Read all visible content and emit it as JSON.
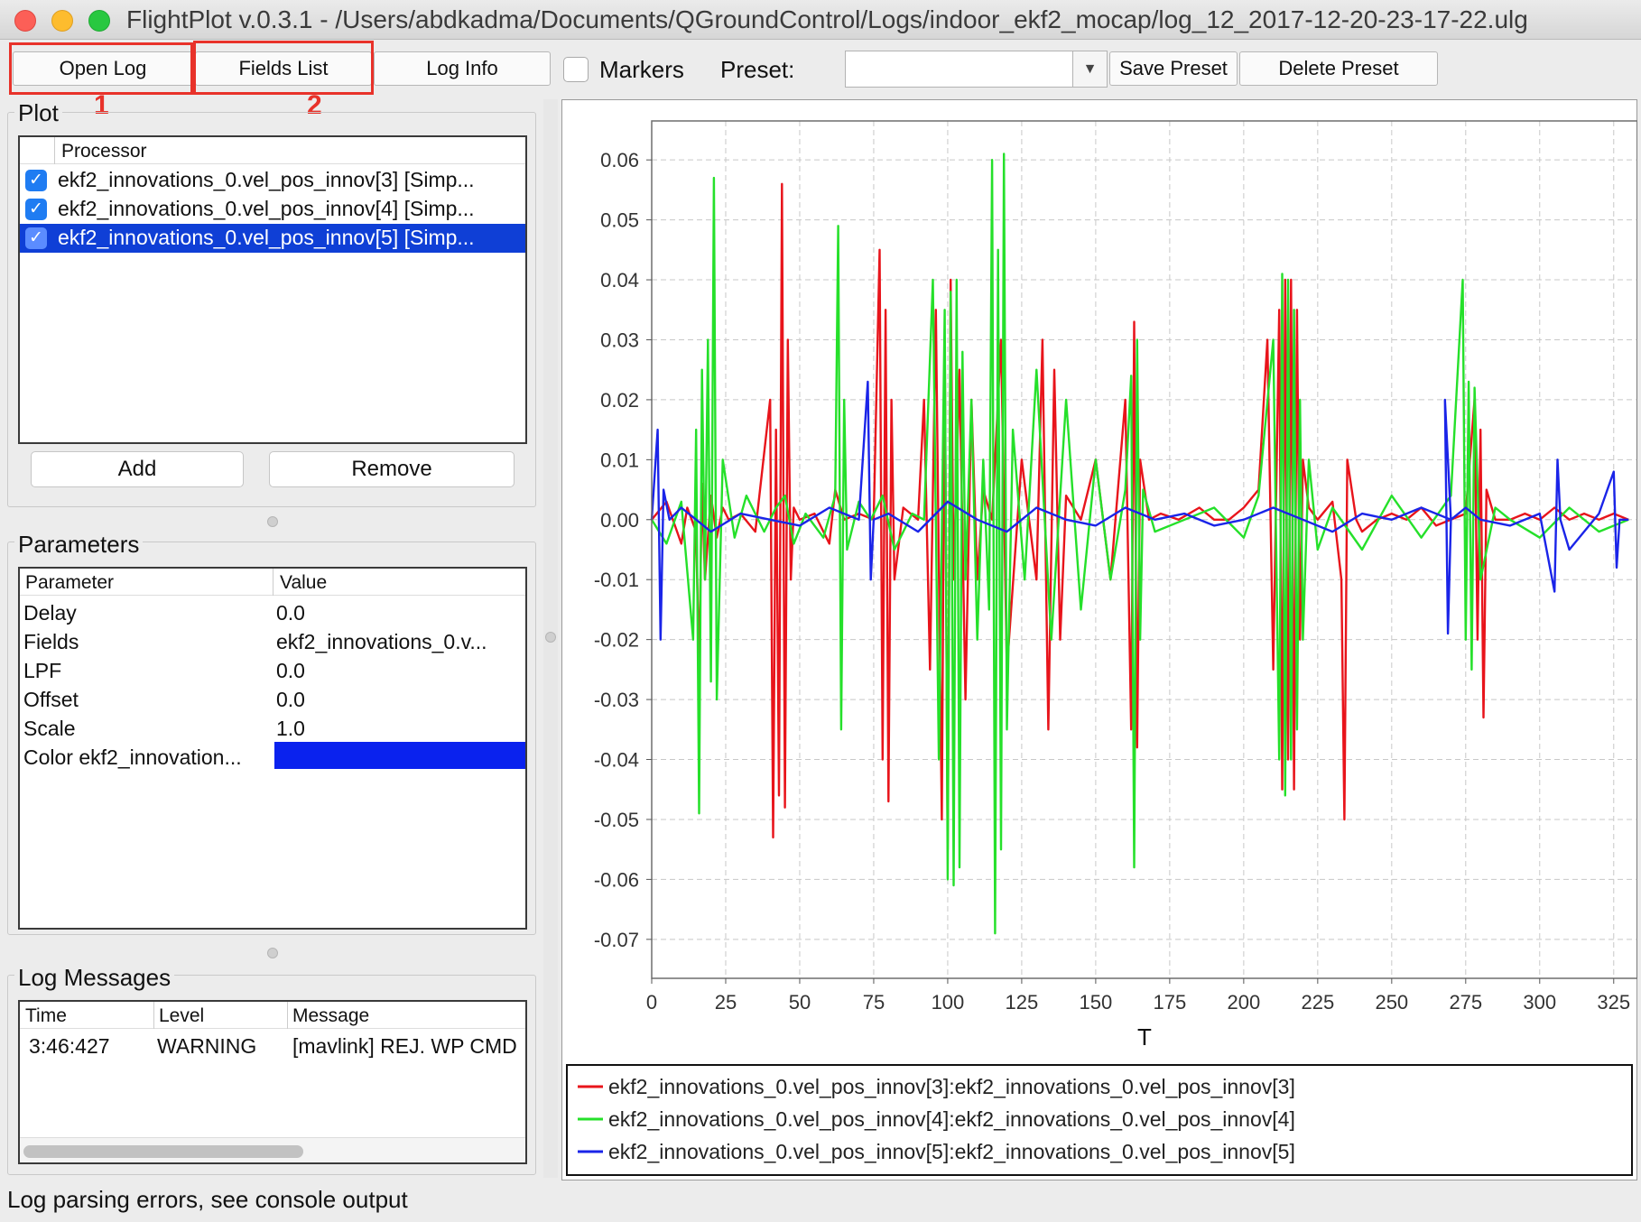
{
  "window": {
    "title": "FlightPlot v.0.3.1 - /Users/abdkadma/Documents/QGroundControl/Logs/indoor_ekf2_mocap/log_12_2017-12-20-23-17-22.ulg"
  },
  "toolbar": {
    "open_log": "Open Log",
    "fields_list": "Fields List",
    "log_info": "Log Info",
    "markers_label": "Markers",
    "markers_checked": false,
    "preset_label": "Preset:",
    "preset_value": "",
    "save_preset": "Save Preset",
    "delete_preset": "Delete Preset"
  },
  "annotations": {
    "box1": "1",
    "box2": "2",
    "color": "#e8322a"
  },
  "plot_panel": {
    "title": "Plot",
    "column_header": "Processor",
    "processors": [
      {
        "label": "ekf2_innovations_0.vel_pos_innov[3] [Simp...",
        "checked": true,
        "selected": false
      },
      {
        "label": "ekf2_innovations_0.vel_pos_innov[4] [Simp...",
        "checked": true,
        "selected": false
      },
      {
        "label": "ekf2_innovations_0.vel_pos_innov[5] [Simp...",
        "checked": true,
        "selected": true
      }
    ],
    "add": "Add",
    "remove": "Remove"
  },
  "parameters_panel": {
    "title": "Parameters",
    "col_param": "Parameter",
    "col_value": "Value",
    "rows": [
      {
        "name": "Delay",
        "value": "0.0"
      },
      {
        "name": "Fields",
        "value": "ekf2_innovations_0.v..."
      },
      {
        "name": "LPF",
        "value": "0.0"
      },
      {
        "name": "Offset",
        "value": "0.0"
      },
      {
        "name": "Scale",
        "value": "1.0"
      },
      {
        "name": "Color ekf2_innovation...",
        "value": ""
      }
    ],
    "color_swatch": "#0a22ee"
  },
  "log_messages": {
    "title": "Log Messages",
    "col_time": "Time",
    "col_level": "Level",
    "col_message": "Message",
    "rows": [
      {
        "time": "3:46:427",
        "level": "WARNING",
        "message": "[mavlink] REJ. WP CMD"
      }
    ]
  },
  "status_bar": {
    "text": "Log parsing errors, see console output"
  },
  "chart_data": {
    "type": "line",
    "xlabel": "T",
    "ylabel": "",
    "xlim": [
      0,
      333
    ],
    "ylim": [
      -0.0765,
      0.0665
    ],
    "x_ticks": [
      0,
      25,
      50,
      75,
      100,
      125,
      150,
      175,
      200,
      225,
      250,
      275,
      300,
      325
    ],
    "y_ticks": [
      0.06,
      0.05,
      0.04,
      0.03,
      0.02,
      0.01,
      0.0,
      -0.01,
      -0.02,
      -0.03,
      -0.04,
      -0.05,
      -0.06,
      -0.07
    ],
    "y_tick_labels": [
      "0.06",
      "0.05",
      "0.04",
      "0.03",
      "0.02",
      "0.01",
      "0.00",
      "-0.01",
      "-0.02",
      "-0.03",
      "-0.04",
      "-0.05",
      "-0.06",
      "-0.07"
    ],
    "grid": true,
    "legend_position": "bottom",
    "series": [
      {
        "name": "ekf2_innovations_0.vel_pos_innov[3]:ekf2_innovations_0.vel_pos_innov[3]",
        "color": "#e8141b",
        "x": [
          0,
          5,
          10,
          12,
          15,
          16,
          17,
          18,
          20,
          22,
          24,
          26,
          30,
          35,
          40,
          41,
          42,
          43,
          44,
          45,
          46,
          47,
          48,
          50,
          55,
          60,
          62,
          65,
          70,
          75,
          77,
          78,
          79,
          80,
          81,
          82,
          85,
          90,
          92,
          94,
          96,
          98,
          99,
          100,
          101,
          102,
          104,
          106,
          108,
          110,
          112,
          115,
          118,
          120,
          125,
          130,
          132,
          134,
          136,
          138,
          140,
          145,
          150,
          155,
          160,
          162,
          163,
          164,
          165,
          168,
          172,
          178,
          185,
          190,
          195,
          200,
          205,
          208,
          210,
          212,
          213,
          214,
          215,
          216,
          217,
          218,
          219,
          220,
          222,
          225,
          230,
          233,
          234,
          235,
          238,
          240,
          245,
          250,
          255,
          260,
          265,
          270,
          275,
          278,
          279,
          280,
          281,
          282,
          285,
          290,
          295,
          300,
          305,
          310,
          315,
          320,
          325,
          330
        ],
        "y": [
          0.0,
          0.003,
          -0.004,
          0.002,
          -0.002,
          -0.025,
          0.006,
          -0.01,
          0.004,
          -0.003,
          0.002,
          0.0,
          0.001,
          -0.002,
          0.02,
          -0.053,
          0.015,
          -0.046,
          0.056,
          -0.048,
          0.03,
          -0.01,
          0.002,
          0.0,
          0.001,
          -0.004,
          0.005,
          0.0,
          0.001,
          0.0,
          0.045,
          -0.04,
          0.035,
          -0.047,
          0.02,
          -0.01,
          0.002,
          0.0,
          0.02,
          -0.025,
          0.035,
          -0.05,
          0.03,
          -0.055,
          0.04,
          -0.01,
          0.025,
          -0.03,
          0.02,
          -0.01,
          0.005,
          0.0,
          0.03,
          -0.025,
          0.01,
          -0.01,
          0.03,
          -0.035,
          0.025,
          -0.02,
          0.004,
          0.0,
          0.01,
          -0.01,
          0.02,
          -0.035,
          0.033,
          -0.038,
          0.01,
          0.0,
          0.001,
          0.0,
          0.002,
          0.0,
          0.0,
          0.002,
          0.005,
          0.03,
          -0.025,
          0.035,
          -0.045,
          0.04,
          -0.04,
          0.04,
          -0.045,
          0.035,
          -0.02,
          0.01,
          0.002,
          0.0,
          0.003,
          -0.01,
          -0.05,
          0.01,
          0.0,
          -0.002,
          0.0,
          0.001,
          0.0,
          0.002,
          -0.001,
          0.0,
          0.001,
          0.02,
          -0.02,
          0.015,
          -0.033,
          0.005,
          0.0,
          0.0,
          0.001,
          0.0,
          0.002,
          0.0,
          0.001,
          0.0,
          0.001,
          0.0
        ]
      },
      {
        "name": "ekf2_innovations_0.vel_pos_innov[4]:ekf2_innovations_0.vel_pos_innov[4]",
        "color": "#25e02a",
        "x": [
          0,
          5,
          10,
          14,
          15,
          16,
          17,
          18,
          19,
          20,
          21,
          22,
          24,
          28,
          32,
          38,
          42,
          45,
          48,
          52,
          58,
          62,
          63,
          64,
          65,
          66,
          70,
          74,
          78,
          82,
          88,
          92,
          95,
          97,
          99,
          100,
          101,
          102,
          103,
          104,
          105,
          106,
          108,
          110,
          112,
          114,
          115,
          116,
          117,
          118,
          119,
          120,
          122,
          126,
          130,
          135,
          140,
          145,
          150,
          155,
          160,
          162,
          163,
          164,
          165,
          166,
          170,
          180,
          190,
          200,
          205,
          210,
          212,
          213,
          214,
          215,
          216,
          217,
          218,
          219,
          220,
          222,
          225,
          230,
          240,
          250,
          260,
          270,
          274,
          275,
          276,
          277,
          278,
          280,
          285,
          290,
          300,
          310,
          320,
          330
        ],
        "y": [
          0.0,
          -0.004,
          0.003,
          -0.02,
          0.015,
          -0.049,
          0.025,
          -0.01,
          0.03,
          -0.027,
          0.057,
          -0.03,
          0.01,
          -0.003,
          0.004,
          -0.002,
          0.002,
          0.004,
          -0.004,
          0.001,
          -0.003,
          0.004,
          0.049,
          -0.035,
          0.02,
          -0.005,
          0.003,
          0.0,
          0.004,
          -0.005,
          0.001,
          0.0,
          0.04,
          -0.04,
          0.035,
          -0.06,
          0.038,
          -0.061,
          0.04,
          -0.058,
          0.028,
          -0.01,
          0.02,
          -0.02,
          0.01,
          -0.015,
          0.06,
          -0.069,
          0.045,
          -0.055,
          0.061,
          -0.035,
          0.015,
          -0.01,
          0.025,
          -0.02,
          0.02,
          -0.015,
          0.01,
          -0.01,
          0.005,
          0.024,
          -0.058,
          0.03,
          -0.02,
          0.005,
          -0.002,
          0.0,
          0.002,
          -0.003,
          0.004,
          0.03,
          -0.04,
          0.041,
          -0.046,
          0.04,
          -0.04,
          0.035,
          -0.035,
          0.02,
          -0.02,
          0.01,
          -0.005,
          0.002,
          -0.005,
          0.004,
          -0.003,
          0.004,
          0.04,
          -0.02,
          0.023,
          -0.025,
          0.022,
          -0.01,
          0.002,
          0.0,
          -0.003,
          0.002,
          -0.002,
          0.0
        ]
      },
      {
        "name": "ekf2_innovations_0.vel_pos_innov[5]:ekf2_innovations_0.vel_pos_innov[5]",
        "color": "#1a24e8",
        "x": [
          0,
          2,
          3,
          4,
          6,
          10,
          20,
          30,
          40,
          50,
          60,
          70,
          73,
          74,
          75,
          80,
          90,
          100,
          110,
          120,
          130,
          140,
          150,
          160,
          170,
          180,
          190,
          200,
          210,
          220,
          230,
          240,
          250,
          260,
          270,
          268,
          269,
          270,
          275,
          280,
          290,
          300,
          305,
          306,
          307,
          310,
          320,
          325,
          326,
          327,
          330
        ],
        "y": [
          0.0,
          0.015,
          -0.02,
          0.005,
          0.0,
          0.002,
          -0.002,
          0.001,
          0.0,
          -0.001,
          0.002,
          0.0,
          0.023,
          -0.01,
          0.0,
          0.001,
          -0.002,
          0.003,
          0.0,
          -0.002,
          0.002,
          0.0,
          -0.001,
          0.002,
          0.0,
          0.001,
          -0.001,
          0.0,
          0.002,
          0.0,
          -0.002,
          0.001,
          0.0,
          0.002,
          0.0,
          0.02,
          -0.019,
          0.0,
          0.002,
          0.0,
          -0.001,
          0.001,
          -0.012,
          0.01,
          0.0,
          -0.005,
          0.001,
          0.008,
          -0.008,
          0.0,
          0.0
        ]
      }
    ]
  }
}
